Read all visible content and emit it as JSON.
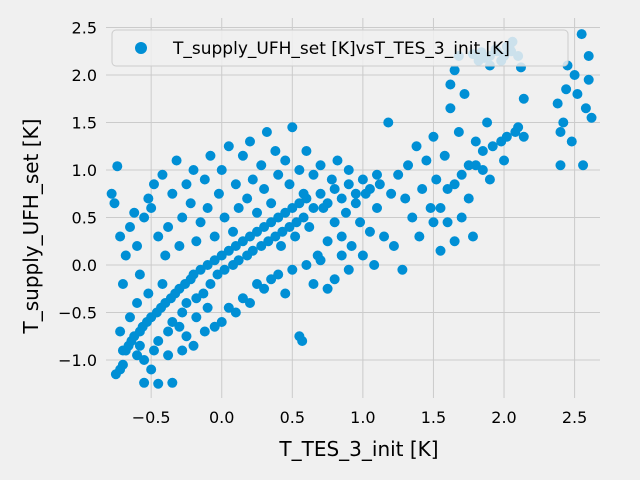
{
  "chart_data": {
    "type": "scatter",
    "xlabel": "T_TES_3_init [K]",
    "ylabel": "T_supply_UFH_set [K]",
    "xlim": [
      -0.82,
      2.68
    ],
    "ylim": [
      -1.4,
      2.6
    ],
    "x_ticks": [
      -0.5,
      0.0,
      0.5,
      1.0,
      1.5,
      2.0,
      2.5
    ],
    "x_tick_labels": [
      "−0.5",
      "0.0",
      "0.5",
      "1.0",
      "1.5",
      "2.0",
      "2.5"
    ],
    "y_ticks": [
      -1.0,
      -0.5,
      0.0,
      0.5,
      1.0,
      1.5,
      2.0,
      2.5
    ],
    "y_tick_labels": [
      "−1.0",
      "−0.5",
      "0.0",
      "0.5",
      "1.0",
      "1.5",
      "2.0",
      "2.5"
    ],
    "grid": true,
    "legend_position": "top",
    "series": [
      {
        "name": "T_supply_UFH_set [K]vsT_TES_3_init [K]",
        "color": "#008fd5",
        "points": [
          [
            -0.75,
            -1.15
          ],
          [
            -0.72,
            -1.1
          ],
          [
            -0.7,
            -1.05
          ],
          [
            -0.68,
            -0.9
          ],
          [
            -0.66,
            -0.85
          ],
          [
            -0.64,
            -0.8
          ],
          [
            -0.62,
            -0.75
          ],
          [
            -0.6,
            -0.95
          ],
          [
            -0.58,
            -0.7
          ],
          [
            -0.56,
            -0.65
          ],
          [
            -0.55,
            -1.0
          ],
          [
            -0.53,
            -0.6
          ],
          [
            -0.5,
            -0.55
          ],
          [
            -0.48,
            -0.9
          ],
          [
            -0.46,
            -0.5
          ],
          [
            -0.45,
            -0.8
          ],
          [
            -0.43,
            -0.45
          ],
          [
            -0.4,
            -0.4
          ],
          [
            -0.38,
            -0.7
          ],
          [
            -0.36,
            -0.35
          ],
          [
            -0.35,
            -0.6
          ],
          [
            -0.33,
            -0.3
          ],
          [
            -0.3,
            -0.25
          ],
          [
            -0.28,
            -0.5
          ],
          [
            -0.26,
            -0.2
          ],
          [
            -0.25,
            -0.4
          ],
          [
            -0.22,
            -0.15
          ],
          [
            -0.2,
            -0.1
          ],
          [
            -0.18,
            -0.35
          ],
          [
            -0.15,
            -0.05
          ],
          [
            -0.13,
            -0.3
          ],
          [
            -0.1,
            0.0
          ],
          [
            -0.08,
            -0.2
          ],
          [
            -0.05,
            0.05
          ],
          [
            -0.03,
            -0.1
          ],
          [
            0.0,
            0.1
          ],
          [
            0.02,
            -0.05
          ],
          [
            0.05,
            0.15
          ],
          [
            0.08,
            0.0
          ],
          [
            0.1,
            0.2
          ],
          [
            0.12,
            0.05
          ],
          [
            0.15,
            0.25
          ],
          [
            0.18,
            0.1
          ],
          [
            0.2,
            0.3
          ],
          [
            0.22,
            0.15
          ],
          [
            0.25,
            0.35
          ],
          [
            0.28,
            0.2
          ],
          [
            0.3,
            0.4
          ],
          [
            0.33,
            0.25
          ],
          [
            0.35,
            0.45
          ],
          [
            0.38,
            0.3
          ],
          [
            0.4,
            0.5
          ],
          [
            0.43,
            0.35
          ],
          [
            0.45,
            0.55
          ],
          [
            0.48,
            0.4
          ],
          [
            0.5,
            0.6
          ],
          [
            0.53,
            0.45
          ],
          [
            0.55,
            0.65
          ],
          [
            0.58,
            0.5
          ],
          [
            0.6,
            0.7
          ],
          [
            0.65,
            0.6
          ],
          [
            0.7,
            0.75
          ],
          [
            0.75,
            0.65
          ],
          [
            0.8,
            0.8
          ],
          [
            0.85,
            0.7
          ],
          [
            0.9,
            0.85
          ],
          [
            0.95,
            0.75
          ],
          [
            1.0,
            0.9
          ],
          [
            1.05,
            0.8
          ],
          [
            1.1,
            0.95
          ],
          [
            -0.78,
            0.75
          ],
          [
            -0.76,
            0.65
          ],
          [
            -0.74,
            1.04
          ],
          [
            -0.72,
            0.3
          ],
          [
            -0.7,
            -0.2
          ],
          [
            -0.68,
            0.1
          ],
          [
            -0.65,
            0.4
          ],
          [
            -0.62,
            0.55
          ],
          [
            -0.6,
            0.2
          ],
          [
            -0.58,
            -0.1
          ],
          [
            -0.55,
            0.5
          ],
          [
            -0.52,
            0.7
          ],
          [
            -0.5,
            0.6
          ],
          [
            -0.48,
            0.85
          ],
          [
            -0.45,
            0.3
          ],
          [
            -0.42,
            0.95
          ],
          [
            -0.4,
            0.1
          ],
          [
            -0.38,
            0.4
          ],
          [
            -0.35,
            0.75
          ],
          [
            -0.32,
            1.1
          ],
          [
            -0.3,
            0.2
          ],
          [
            -0.28,
            0.5
          ],
          [
            -0.25,
            0.85
          ],
          [
            -0.22,
            0.65
          ],
          [
            -0.2,
            1.0
          ],
          [
            -0.18,
            0.25
          ],
          [
            -0.15,
            0.45
          ],
          [
            -0.12,
            0.9
          ],
          [
            -0.1,
            0.6
          ],
          [
            -0.08,
            1.15
          ],
          [
            -0.05,
            0.3
          ],
          [
            -0.02,
            0.75
          ],
          [
            0.0,
            1.0
          ],
          [
            0.02,
            0.5
          ],
          [
            0.05,
            1.25
          ],
          [
            0.08,
            0.35
          ],
          [
            0.1,
            0.85
          ],
          [
            0.12,
            0.6
          ],
          [
            0.15,
            1.15
          ],
          [
            0.18,
            0.7
          ],
          [
            0.2,
            1.3
          ],
          [
            0.22,
            0.9
          ],
          [
            0.25,
            0.55
          ],
          [
            0.28,
            1.05
          ],
          [
            0.3,
            0.8
          ],
          [
            0.32,
            1.4
          ],
          [
            0.35,
            0.65
          ],
          [
            0.38,
            1.2
          ],
          [
            0.4,
            0.95
          ],
          [
            0.42,
            0.2
          ],
          [
            0.45,
            1.1
          ],
          [
            0.48,
            0.85
          ],
          [
            0.5,
            1.45
          ],
          [
            0.52,
            0.3
          ],
          [
            0.55,
            1.0
          ],
          [
            0.58,
            0.75
          ],
          [
            0.6,
            1.2
          ],
          [
            0.62,
            0.4
          ],
          [
            0.65,
            0.95
          ],
          [
            0.68,
            0.1
          ],
          [
            0.7,
            1.05
          ],
          [
            0.72,
            0.6
          ],
          [
            0.75,
            0.25
          ],
          [
            0.78,
            0.9
          ],
          [
            0.8,
            0.45
          ],
          [
            0.82,
            1.1
          ],
          [
            0.85,
            0.3
          ],
          [
            0.88,
            0.55
          ],
          [
            0.9,
            1.0
          ],
          [
            0.92,
            0.2
          ],
          [
            0.95,
            0.65
          ],
          [
            0.98,
            0.45
          ],
          [
            1.0,
            0.1
          ],
          [
            1.02,
            0.75
          ],
          [
            1.05,
            0.35
          ],
          [
            1.08,
            0.0
          ],
          [
            1.1,
            0.6
          ],
          [
            1.12,
            0.85
          ],
          [
            1.15,
            0.3
          ],
          [
            1.18,
            1.5
          ],
          [
            1.2,
            0.75
          ],
          [
            1.22,
            0.2
          ],
          [
            1.25,
            0.95
          ],
          [
            1.28,
            -0.05
          ],
          [
            1.3,
            0.7
          ],
          [
            1.32,
            1.05
          ],
          [
            1.35,
            0.5
          ],
          [
            1.38,
            1.25
          ],
          [
            1.4,
            0.3
          ],
          [
            1.42,
            0.8
          ],
          [
            1.45,
            1.1
          ],
          [
            1.48,
            0.6
          ],
          [
            1.5,
            1.35
          ],
          [
            1.52,
            0.9
          ],
          [
            1.55,
            0.15
          ],
          [
            1.58,
            1.15
          ],
          [
            1.6,
            0.45
          ],
          [
            1.62,
            1.65
          ],
          [
            1.65,
            0.85
          ],
          [
            1.68,
            1.4
          ],
          [
            1.7,
            0.5
          ],
          [
            1.72,
            1.8
          ],
          [
            1.75,
            1.05
          ],
          [
            1.78,
            0.3
          ],
          [
            1.8,
            1.3
          ],
          [
            1.82,
            2.15
          ],
          [
            1.85,
            1.0
          ],
          [
            1.88,
            1.5
          ],
          [
            1.9,
            2.2
          ],
          [
            1.92,
            1.25
          ],
          [
            1.95,
            2.25
          ],
          [
            1.98,
            1.3
          ],
          [
            2.0,
            2.2
          ],
          [
            2.02,
            1.35
          ],
          [
            2.05,
            2.25
          ],
          [
            2.08,
            1.4
          ],
          [
            2.1,
            1.45
          ],
          [
            2.14,
            1.75
          ],
          [
            2.14,
            1.35
          ],
          [
            2.38,
            1.7
          ],
          [
            2.4,
            1.05
          ],
          [
            2.42,
            1.5
          ],
          [
            2.45,
            2.1
          ],
          [
            2.48,
            1.3
          ],
          [
            2.5,
            2.0
          ],
          [
            2.52,
            1.8
          ],
          [
            2.55,
            2.43
          ],
          [
            2.56,
            1.05
          ],
          [
            2.58,
            1.65
          ],
          [
            2.6,
            2.2
          ],
          [
            2.62,
            1.55
          ],
          [
            2.6,
            1.95
          ],
          [
            2.44,
            1.85
          ],
          [
            2.4,
            1.4
          ],
          [
            -0.72,
            -0.7
          ],
          [
            -0.7,
            -0.9
          ],
          [
            -0.65,
            -0.55
          ],
          [
            -0.6,
            -0.4
          ],
          [
            -0.58,
            -0.85
          ],
          [
            -0.55,
            -1.24
          ],
          [
            -0.52,
            -0.3
          ],
          [
            -0.5,
            -1.1
          ],
          [
            -0.45,
            -1.25
          ],
          [
            -0.42,
            -0.2
          ],
          [
            -0.38,
            -0.95
          ],
          [
            -0.35,
            -1.24
          ],
          [
            -0.3,
            -0.65
          ],
          [
            -0.28,
            -0.9
          ],
          [
            -0.25,
            -0.75
          ],
          [
            -0.2,
            -0.85
          ],
          [
            -0.18,
            -0.55
          ],
          [
            -0.12,
            -0.7
          ],
          [
            -0.1,
            -0.45
          ],
          [
            -0.05,
            -0.65
          ],
          [
            0.0,
            -0.6
          ],
          [
            0.05,
            -0.45
          ],
          [
            0.1,
            -0.5
          ],
          [
            0.15,
            -0.35
          ],
          [
            0.2,
            -0.4
          ],
          [
            0.25,
            -0.2
          ],
          [
            0.3,
            -0.25
          ],
          [
            0.35,
            -0.15
          ],
          [
            0.4,
            -0.1
          ],
          [
            0.45,
            -0.3
          ],
          [
            0.5,
            -0.05
          ],
          [
            0.55,
            -0.75
          ],
          [
            0.57,
            -0.8
          ],
          [
            0.6,
            0.0
          ],
          [
            0.65,
            -0.2
          ],
          [
            0.7,
            0.05
          ],
          [
            0.75,
            -0.25
          ],
          [
            0.8,
            -0.15
          ],
          [
            0.85,
            0.1
          ],
          [
            0.9,
            -0.05
          ],
          [
            1.5,
            0.45
          ],
          [
            1.55,
            0.6
          ],
          [
            1.6,
            0.8
          ],
          [
            1.65,
            0.25
          ],
          [
            1.7,
            0.95
          ],
          [
            1.75,
            0.7
          ],
          [
            1.8,
            1.05
          ],
          [
            1.85,
            1.2
          ],
          [
            1.9,
            0.9
          ],
          [
            2.0,
            1.1
          ],
          [
            1.62,
            1.9
          ],
          [
            1.65,
            2.05
          ],
          [
            1.68,
            2.2
          ],
          [
            1.86,
            2.18
          ],
          [
            1.94,
            2.27
          ],
          [
            2.02,
            2.3
          ],
          [
            2.06,
            2.35
          ],
          [
            1.9,
            2.1
          ],
          [
            1.98,
            2.15
          ],
          [
            2.04,
            2.28
          ],
          [
            2.12,
            2.08
          ],
          [
            2.1,
            2.2
          ],
          [
            1.78,
            2.22
          ],
          [
            1.84,
            2.24
          ]
        ]
      }
    ]
  }
}
